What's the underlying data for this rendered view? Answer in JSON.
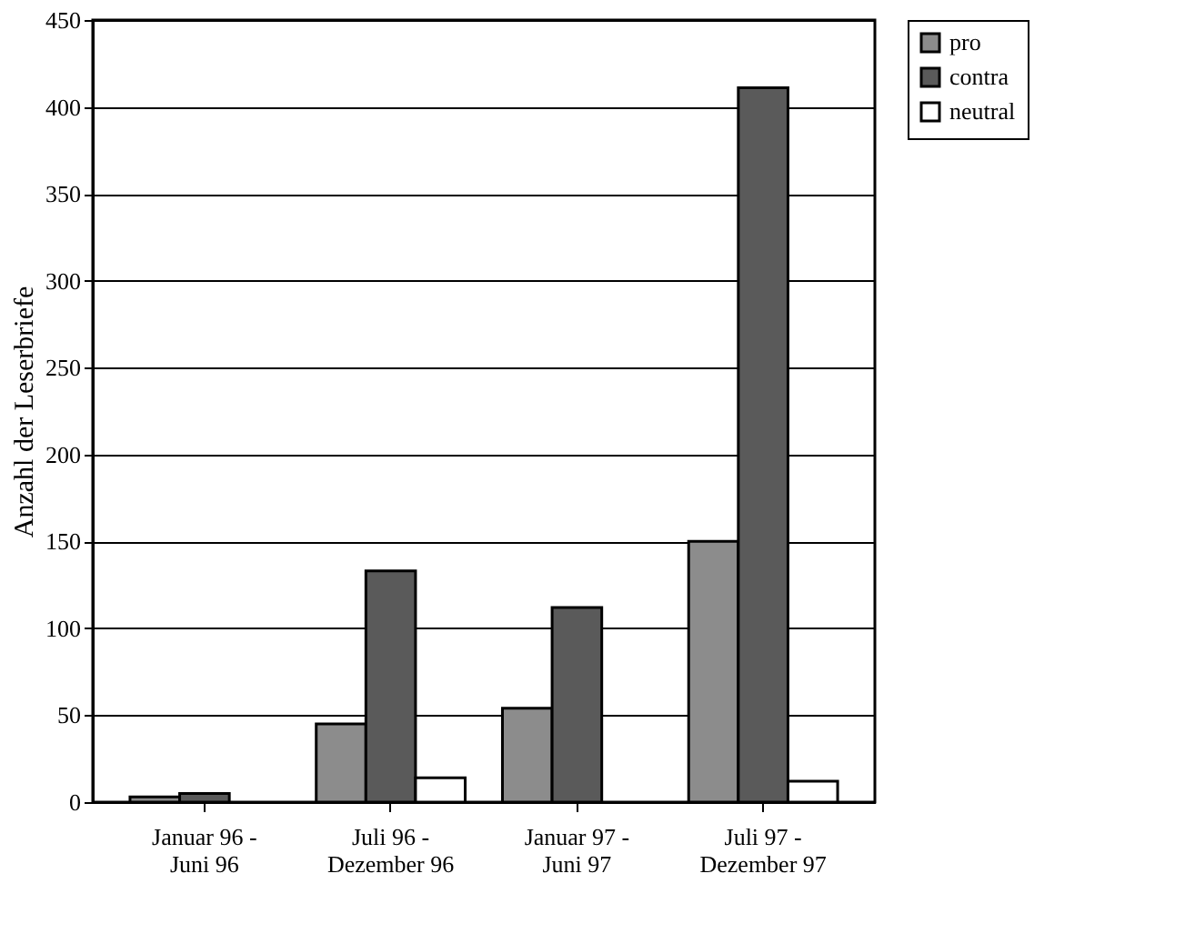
{
  "chart_data": {
    "type": "bar",
    "ylabel": "Anzahl der Leserbriefe",
    "categories": [
      "Januar 96 -\nJuni 96",
      "Juli 96 -\nDezember 96",
      "Januar 97 -\nJuni 97",
      "Juli 97 -\nDezember 97"
    ],
    "series": [
      {
        "name": "pro",
        "color": "#8c8c8c",
        "values": [
          3,
          45,
          54,
          150
        ]
      },
      {
        "name": "contra",
        "color": "#5a5a5a",
        "values": [
          5,
          133,
          112,
          411
        ]
      },
      {
        "name": "neutral",
        "color": "#ffffff",
        "values": [
          null,
          14,
          null,
          12
        ]
      }
    ],
    "ylim": [
      0,
      450
    ],
    "yticks": [
      0,
      50,
      100,
      150,
      200,
      250,
      300,
      350,
      400,
      450
    ],
    "grid": "y",
    "legend": "right"
  }
}
